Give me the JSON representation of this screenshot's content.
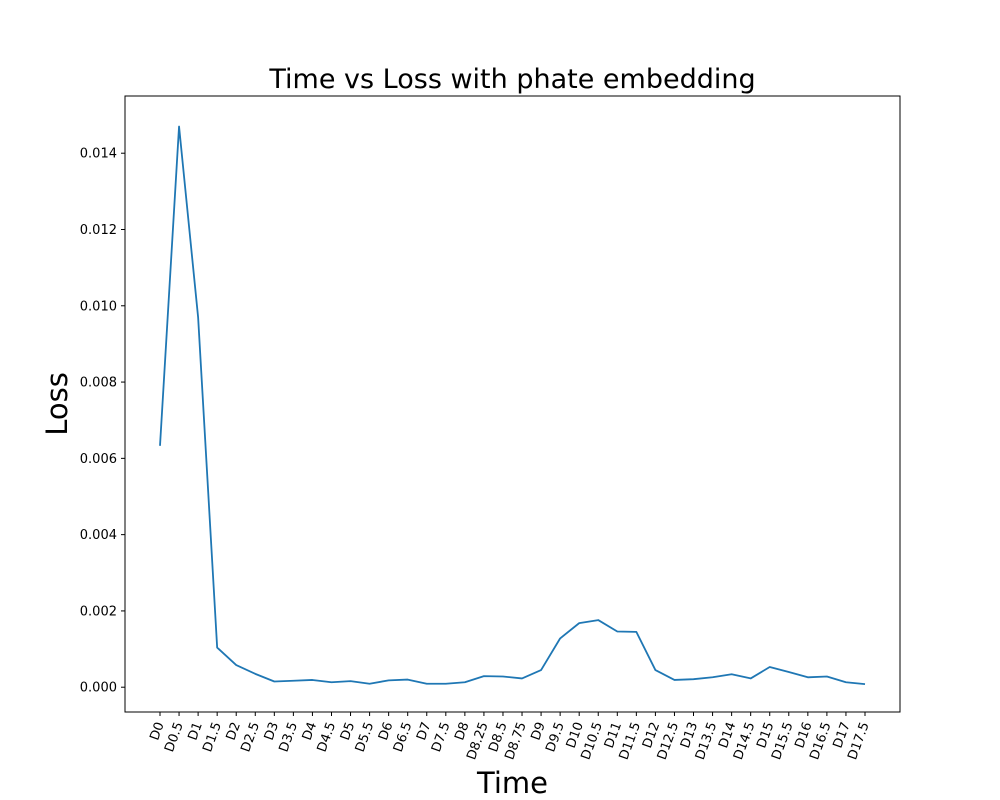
{
  "chart_data": {
    "type": "line",
    "title": "Time vs Loss with phate embedding",
    "xlabel": "Time",
    "ylabel": "Loss",
    "categories": [
      "D0",
      "D0.5",
      "D1",
      "D1.5",
      "D2",
      "D2.5",
      "D3",
      "D3.5",
      "D4",
      "D4.5",
      "D5",
      "D5.5",
      "D6",
      "D6.5",
      "D7",
      "D7.5",
      "D8",
      "D8.25",
      "D8.5",
      "D8.75",
      "D9",
      "D9.5",
      "D10",
      "D10.5",
      "D11",
      "D11.5",
      "D12",
      "D12.5",
      "D13",
      "D13.5",
      "D14",
      "D14.5",
      "D15",
      "D15.5",
      "D16",
      "D16.5",
      "D17",
      "D17.5"
    ],
    "series": [
      {
        "values": [
          0.00633,
          0.0147,
          0.0097,
          0.00104,
          0.00058,
          0.00035,
          0.00015,
          0.00017,
          0.00019,
          0.00013,
          0.00016,
          9e-05,
          0.00018,
          0.0002,
          9e-05,
          9e-05,
          0.00013,
          0.00029,
          0.00028,
          0.00023,
          0.00045,
          0.00128,
          0.00168,
          0.00176,
          0.00146,
          0.00145,
          0.00045,
          0.00019,
          0.00021,
          0.00026,
          0.00034,
          0.00023,
          0.00053,
          0.0004,
          0.00026,
          0.00028,
          0.00013,
          8e-05
        ],
        "color": "#1f77b4"
      }
    ],
    "yticks": [
      "0.000",
      "0.002",
      "0.004",
      "0.006",
      "0.008",
      "0.010",
      "0.012",
      "0.014"
    ],
    "ylim": [
      -0.00065,
      0.0155
    ],
    "grid": false,
    "legend": "none"
  }
}
